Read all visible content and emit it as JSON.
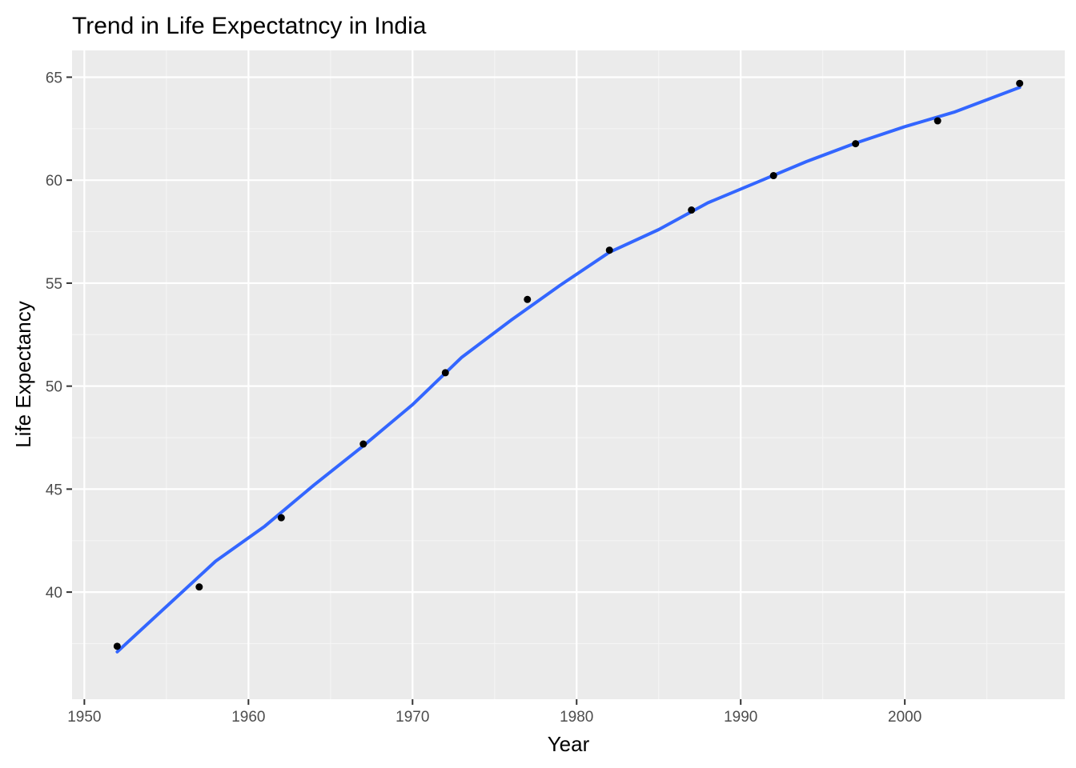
{
  "chart_data": {
    "type": "scatter",
    "title": "Trend in Life Expectatncy in India",
    "xlabel": "Year",
    "ylabel": "Life Expectancy",
    "xlim": [
      1949.25,
      2009.75
    ],
    "ylim": [
      34.8,
      66.3
    ],
    "x_ticks": [
      1950,
      1960,
      1970,
      1980,
      1990,
      2000
    ],
    "x_tick_labels": [
      "1950",
      "1960",
      "1970",
      "1980",
      "1990",
      "2000"
    ],
    "y_ticks": [
      40,
      45,
      50,
      55,
      60,
      65
    ],
    "y_tick_labels": [
      "40",
      "45",
      "50",
      "55",
      "60",
      "65"
    ],
    "grid": true,
    "series": [
      {
        "type": "scatter",
        "x": [
          1952,
          1957,
          1962,
          1967,
          1972,
          1977,
          1982,
          1987,
          1992,
          1997,
          2002,
          2007
        ],
        "y": [
          37.37,
          40.25,
          43.61,
          47.19,
          50.65,
          54.21,
          56.6,
          58.55,
          60.22,
          61.77,
          62.88,
          64.7
        ]
      },
      {
        "type": "line",
        "x": [
          1952,
          1955,
          1958,
          1961,
          1964,
          1967,
          1970,
          1973,
          1976,
          1979,
          1982,
          1985,
          1988,
          1991,
          1994,
          1997,
          2000,
          2003,
          2007
        ],
        "y": [
          37.1,
          39.3,
          41.5,
          43.2,
          45.2,
          47.1,
          49.1,
          51.4,
          53.2,
          54.9,
          56.5,
          57.6,
          58.9,
          59.9,
          60.9,
          61.8,
          62.6,
          63.3,
          64.5
        ]
      }
    ],
    "colors": {
      "panel_background": "#ebebeb",
      "grid_major": "#ffffff",
      "grid_minor": "#f5f5f5",
      "points": "#000000",
      "smooth_line": "#3366ff",
      "tick_text": "#4d4d4d",
      "tick_marks": "#333333"
    }
  }
}
